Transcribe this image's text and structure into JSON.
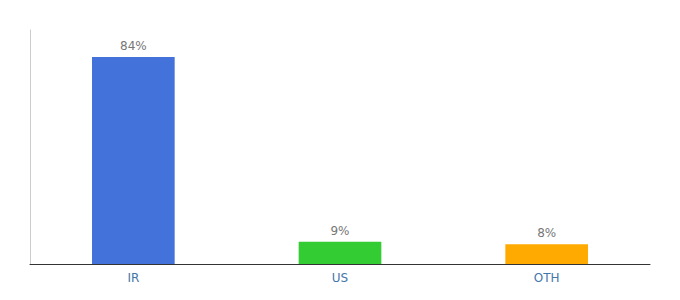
{
  "chart_data": {
    "type": "bar",
    "categories": [
      "IR",
      "US",
      "OTH"
    ],
    "values": [
      84,
      9,
      8
    ],
    "value_labels": [
      "84%",
      "9%",
      "8%"
    ],
    "colors": [
      "#4472db",
      "#33cc33",
      "#ffaa00"
    ],
    "ylim": [
      0,
      95
    ],
    "data_labels": true,
    "tick_labels": "x",
    "grid": false
  }
}
